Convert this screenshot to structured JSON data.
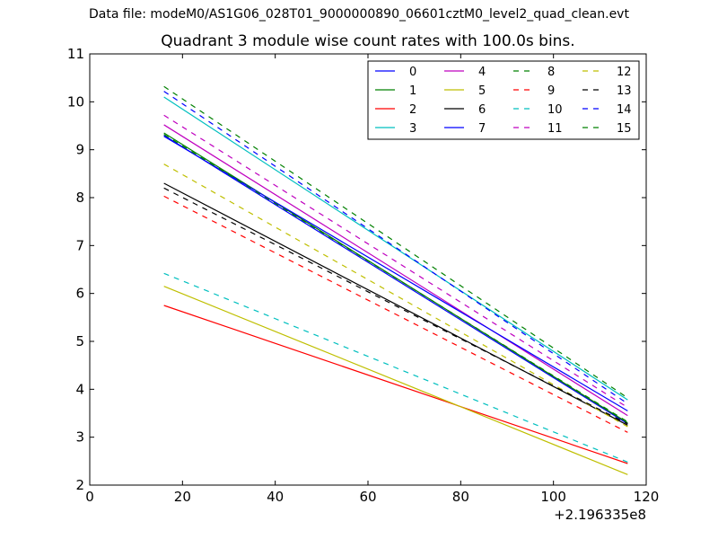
{
  "figure": {
    "suptitle": "Data file: modeM0/AS1G06_028T01_9000000890_06601cztM0_level2_quad_clean.evt",
    "title": "Quadrant 3 module wise count rates with 100.0s bins.",
    "x_offset_label": "+2.196335e8"
  },
  "chart_data": {
    "type": "line",
    "title": "Quadrant 3 module wise count rates with 100.0s bins.",
    "xlabel": "",
    "ylabel": "",
    "xlim": [
      0,
      120
    ],
    "ylim": [
      2,
      11
    ],
    "xticks": [
      0,
      20,
      40,
      60,
      80,
      100,
      120
    ],
    "yticks": [
      2,
      3,
      4,
      5,
      6,
      7,
      8,
      9,
      10,
      11
    ],
    "x_offset": "+2.196335e8",
    "legend_position": "top-right",
    "legend_columns": 4,
    "x": [
      16,
      116
    ],
    "series": [
      {
        "name": "0",
        "color": "#0000ff",
        "style": "solid",
        "values": [
          9.3,
          3.28
        ]
      },
      {
        "name": "1",
        "color": "#008000",
        "style": "solid",
        "values": [
          9.35,
          3.3
        ]
      },
      {
        "name": "2",
        "color": "#ff0000",
        "style": "solid",
        "values": [
          5.75,
          2.45
        ]
      },
      {
        "name": "3",
        "color": "#00bfbf",
        "style": "solid",
        "values": [
          10.1,
          3.78
        ]
      },
      {
        "name": "4",
        "color": "#bf00bf",
        "style": "solid",
        "values": [
          9.52,
          3.45
        ]
      },
      {
        "name": "5",
        "color": "#bfbf00",
        "style": "solid",
        "values": [
          6.15,
          2.22
        ]
      },
      {
        "name": "6",
        "color": "#000000",
        "style": "solid",
        "values": [
          8.3,
          3.25
        ]
      },
      {
        "name": "7",
        "color": "#0000ff",
        "style": "solid",
        "values": [
          9.28,
          3.55
        ]
      },
      {
        "name": "8",
        "color": "#008000",
        "style": "dashed",
        "values": [
          9.32,
          3.32
        ]
      },
      {
        "name": "9",
        "color": "#ff0000",
        "style": "dashed",
        "values": [
          8.03,
          3.1
        ]
      },
      {
        "name": "10",
        "color": "#00bfbf",
        "style": "dashed",
        "values": [
          6.42,
          2.48
        ]
      },
      {
        "name": "11",
        "color": "#bf00bf",
        "style": "dashed",
        "values": [
          9.72,
          3.62
        ]
      },
      {
        "name": "12",
        "color": "#bfbf00",
        "style": "dashed",
        "values": [
          8.7,
          3.22
        ]
      },
      {
        "name": "13",
        "color": "#000000",
        "style": "dashed",
        "values": [
          8.2,
          3.28
        ]
      },
      {
        "name": "14",
        "color": "#0000ff",
        "style": "dashed",
        "values": [
          10.22,
          3.7
        ]
      },
      {
        "name": "15",
        "color": "#008000",
        "style": "dashed",
        "values": [
          10.32,
          3.82
        ]
      }
    ]
  }
}
